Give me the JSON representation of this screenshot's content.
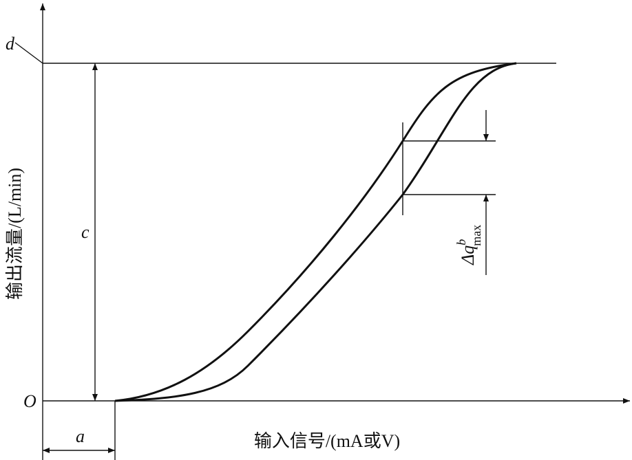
{
  "axes": {
    "y_label": "输出流量/(L/min)",
    "x_label": "输入信号/(mA或V)"
  },
  "annotations": {
    "origin": "O",
    "d": "d",
    "c": "c",
    "a": "a",
    "delta_q": "Δq",
    "delta_q_sup": "b",
    "delta_q_sub": "max"
  }
}
